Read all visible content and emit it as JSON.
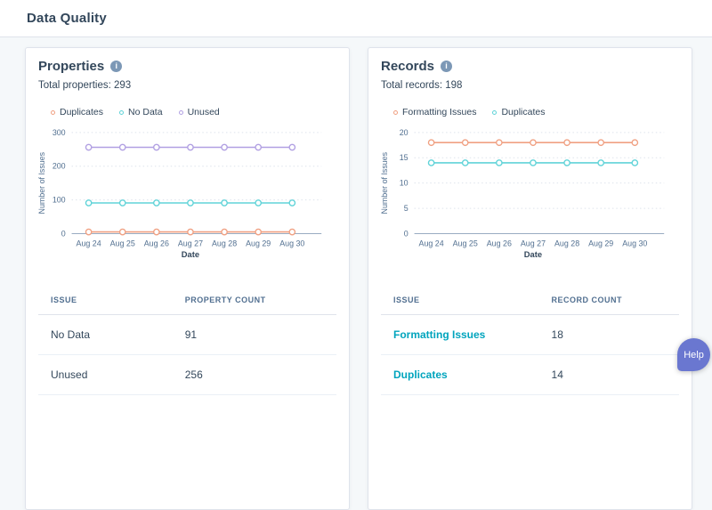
{
  "header": {
    "title": "Data Quality"
  },
  "icons": {
    "info": "i"
  },
  "help_button": {
    "label": "Help",
    "color": "#6a77d0"
  },
  "colors": {
    "page_background": "#f5f8fa",
    "card_background": "#ffffff",
    "heading_text": "#33475b",
    "secondary_text": "#516f90",
    "link": "#00a4bd",
    "series_orange": "#f0a082",
    "series_teal": "#60d3d8",
    "series_purple": "#b1a0e2"
  },
  "cards": [
    {
      "title": "Properties",
      "subtitle": "Total properties: 293",
      "legend": [
        {
          "label": "Duplicates",
          "color": "#f0a082"
        },
        {
          "label": "No Data",
          "color": "#60d3d8"
        },
        {
          "label": "Unused",
          "color": "#b1a0e2"
        }
      ],
      "chart_data": {
        "type": "line",
        "title": "",
        "x": [
          "Aug 24",
          "Aug 25",
          "Aug 26",
          "Aug 27",
          "Aug 28",
          "Aug 29",
          "Aug 30"
        ],
        "series": [
          {
            "name": "Duplicates",
            "color": "#f0a082",
            "values": [
              5,
              5,
              5,
              5,
              5,
              5,
              5
            ]
          },
          {
            "name": "No Data",
            "color": "#60d3d8",
            "values": [
              91,
              91,
              91,
              91,
              91,
              91,
              91
            ]
          },
          {
            "name": "Unused",
            "color": "#b1a0e2",
            "values": [
              256,
              256,
              256,
              256,
              256,
              256,
              256
            ]
          }
        ],
        "xlabel": "Date",
        "ylabel": "Number of Issues",
        "ylim": [
          0,
          300
        ],
        "yticks": [
          0,
          100,
          200,
          300
        ],
        "grid": true,
        "legend_position": "top"
      },
      "table": {
        "headers": [
          "ISSUE",
          "PROPERTY COUNT"
        ],
        "rows": [
          {
            "issue": "No Data",
            "count": "91",
            "is_link": false
          },
          {
            "issue": "Unused",
            "count": "256",
            "is_link": false
          }
        ]
      }
    },
    {
      "title": "Records",
      "subtitle": "Total records: 198",
      "legend": [
        {
          "label": "Formatting Issues",
          "color": "#f0a082"
        },
        {
          "label": "Duplicates",
          "color": "#60d3d8"
        }
      ],
      "chart_data": {
        "type": "line",
        "title": "",
        "x": [
          "Aug 24",
          "Aug 25",
          "Aug 26",
          "Aug 27",
          "Aug 28",
          "Aug 29",
          "Aug 30"
        ],
        "series": [
          {
            "name": "Formatting Issues",
            "color": "#f0a082",
            "values": [
              18,
              18,
              18,
              18,
              18,
              18,
              18
            ]
          },
          {
            "name": "Duplicates",
            "color": "#60d3d8",
            "values": [
              14,
              14,
              14,
              14,
              14,
              14,
              14
            ]
          }
        ],
        "xlabel": "Date",
        "ylabel": "Number of Issues",
        "ylim": [
          0,
          20
        ],
        "yticks": [
          0,
          5,
          10,
          15,
          20
        ],
        "grid": true,
        "legend_position": "top"
      },
      "table": {
        "headers": [
          "ISSUE",
          "RECORD COUNT"
        ],
        "rows": [
          {
            "issue": "Formatting Issues",
            "count": "18",
            "is_link": true
          },
          {
            "issue": "Duplicates",
            "count": "14",
            "is_link": true
          }
        ]
      }
    }
  ]
}
